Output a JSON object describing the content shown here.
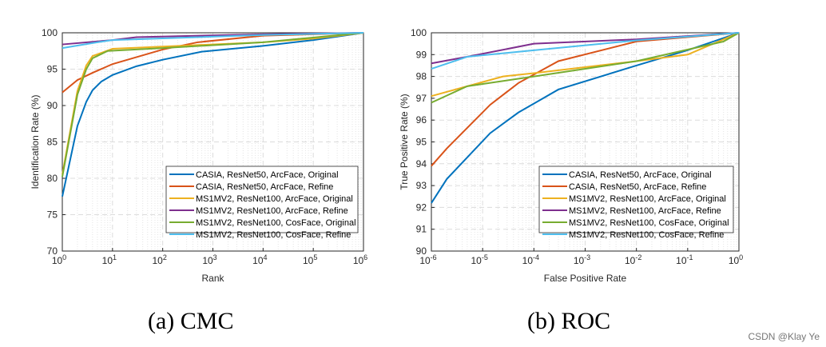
{
  "colors": [
    "#0072BD",
    "#D95319",
    "#EDB120",
    "#7E2F8E",
    "#77AC30",
    "#4DBEEE"
  ],
  "legend": [
    "CASIA, ResNet50, ArcFace, Original",
    "CASIA, ResNet50, ArcFace, Refine",
    "MS1MV2, ResNet100, ArcFace, Original",
    "MS1MV2, ResNet100, ArcFace, Refine",
    "MS1MV2, ResNet100, CosFace, Original",
    "MS1MV2, ResNet100, CosFace, Refine"
  ],
  "captions": {
    "a": "(a)  CMC",
    "b": "(b)  ROC"
  },
  "watermark": "CSDN @Klay Ye",
  "chart_data": [
    {
      "type": "line",
      "xscale": "log",
      "xlabel": "Rank",
      "ylabel": "Identification Rate (%)",
      "xlim": [
        1,
        1000000
      ],
      "ylim": [
        70,
        100
      ],
      "yticks": [
        70,
        75,
        80,
        85,
        90,
        95,
        100
      ],
      "xtick_exponents": [
        0,
        1,
        2,
        3,
        4,
        5,
        6
      ],
      "grid": true,
      "legend_position": "bottom-right",
      "series": [
        {
          "name": "CASIA, ResNet50, ArcFace, Original",
          "x": [
            1,
            2,
            3,
            4,
            6,
            10,
            30,
            100,
            600,
            10000,
            100000,
            1000000
          ],
          "y": [
            77.5,
            87.2,
            90.5,
            92.1,
            93.3,
            94.2,
            95.4,
            96.3,
            97.4,
            98.2,
            99.0,
            100
          ]
        },
        {
          "name": "CASIA, ResNet50, ArcFace, Refine",
          "x": [
            1,
            2,
            4,
            10,
            100,
            500,
            10000,
            1000000
          ],
          "y": [
            91.8,
            93.5,
            94.5,
            95.7,
            97.7,
            98.7,
            99.6,
            100
          ]
        },
        {
          "name": "MS1MV2, ResNet100, ArcFace, Original",
          "x": [
            1,
            2,
            3,
            4,
            10,
            100,
            10000,
            100000,
            1000000
          ],
          "y": [
            80.5,
            92,
            95.5,
            96.8,
            97.8,
            98.1,
            98.7,
            99.2,
            100
          ]
        },
        {
          "name": "MS1MV2, ResNet100, ArcFace, Refine",
          "x": [
            1,
            10,
            30,
            10000,
            1000000
          ],
          "y": [
            98.4,
            99.0,
            99.4,
            99.8,
            100
          ]
        },
        {
          "name": "MS1MV2, ResNet100, CosFace, Original",
          "x": [
            1,
            2,
            3,
            4,
            8,
            100,
            10000,
            1000000
          ],
          "y": [
            80.2,
            91.5,
            95,
            96.5,
            97.5,
            97.9,
            98.7,
            100
          ]
        },
        {
          "name": "MS1MV2, ResNet100, CosFace, Refine",
          "x": [
            1,
            5,
            10,
            10000,
            1000000
          ],
          "y": [
            97.9,
            98.7,
            99.0,
            99.7,
            100
          ]
        }
      ]
    },
    {
      "type": "line",
      "xscale": "log",
      "xlabel": "False Positive Rate",
      "ylabel": "True Positive Rate (%)",
      "xlim": [
        1e-06,
        1
      ],
      "ylim": [
        90,
        100
      ],
      "yticks": [
        90,
        91,
        92,
        93,
        94,
        95,
        96,
        97,
        98,
        99,
        100
      ],
      "xtick_exponents": [
        -6,
        -5,
        -4,
        -3,
        -2,
        -1,
        0
      ],
      "grid": true,
      "legend_position": "bottom-right",
      "series": [
        {
          "name": "CASIA, ResNet50, ArcFace, Original",
          "x": [
            1e-06,
            2e-06,
            1.4e-05,
            5e-05,
            0.0003,
            0.01,
            0.1,
            1
          ],
          "y": [
            92.2,
            93.3,
            95.4,
            96.35,
            97.4,
            98.5,
            99.2,
            100
          ]
        },
        {
          "name": "CASIA, ResNet50, ArcFace, Refine",
          "x": [
            1e-06,
            2e-06,
            1.4e-05,
            5e-05,
            0.0003,
            0.01,
            1
          ],
          "y": [
            93.9,
            94.7,
            96.7,
            97.7,
            98.7,
            99.6,
            100
          ]
        },
        {
          "name": "MS1MV2, ResNet100, ArcFace, Original",
          "x": [
            1e-06,
            5e-06,
            2.5e-05,
            0.0001,
            0.01,
            0.1,
            1
          ],
          "y": [
            97.1,
            97.55,
            98.0,
            98.15,
            98.7,
            99.0,
            100
          ]
        },
        {
          "name": "MS1MV2, ResNet100, ArcFace, Refine",
          "x": [
            1e-06,
            5e-06,
            0.0001,
            0.01,
            1
          ],
          "y": [
            98.6,
            98.9,
            99.5,
            99.7,
            100
          ]
        },
        {
          "name": "MS1MV2, ResNet100, CosFace, Original",
          "x": [
            1e-06,
            5e-06,
            0.0001,
            0.01,
            0.5,
            1
          ],
          "y": [
            96.8,
            97.55,
            98.0,
            98.7,
            99.6,
            100
          ]
        },
        {
          "name": "MS1MV2, ResNet100, CosFace, Refine",
          "x": [
            1e-06,
            5e-06,
            0.0001,
            0.01,
            1
          ],
          "y": [
            98.35,
            98.9,
            99.2,
            99.65,
            100
          ]
        }
      ]
    }
  ]
}
